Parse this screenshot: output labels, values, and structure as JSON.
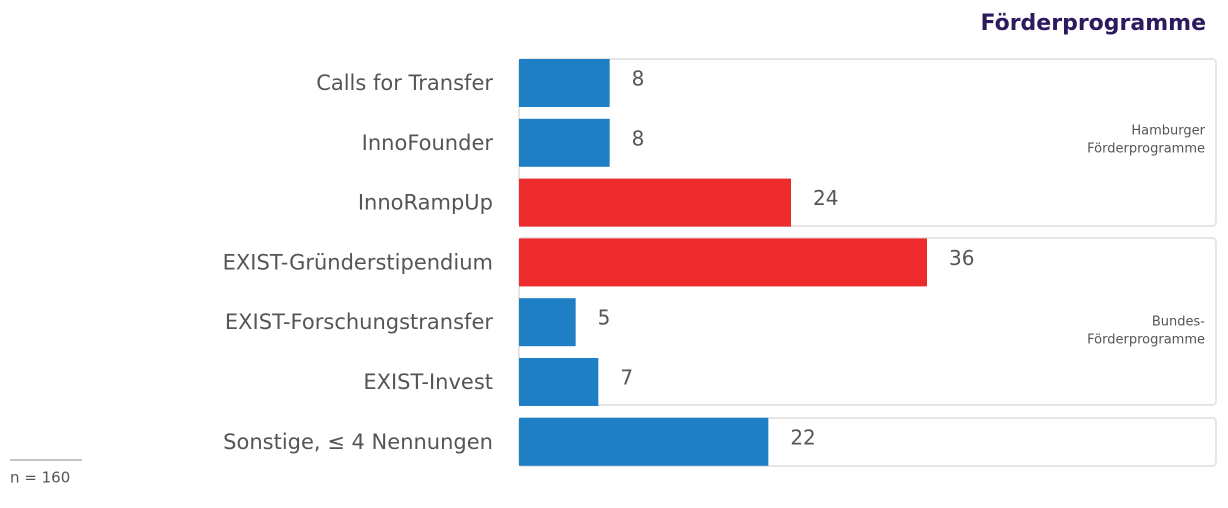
{
  "chart_data": {
    "type": "bar",
    "orientation": "horizontal",
    "title": "Förderprogramme",
    "categories": [
      "Calls for Transfer",
      "InnoFounder",
      "InnoRampUp",
      "EXIST-Gründerstipendium",
      "EXIST-Forschungstransfer",
      "EXIST-Invest",
      "Sonstige, ≤ 4 Nennungen"
    ],
    "values": [
      8,
      8,
      24,
      36,
      5,
      7,
      22
    ],
    "colors": [
      "#1f7fc4",
      "#1f7fc4",
      "#ee2b2c",
      "#ee2b2c",
      "#1f7fc4",
      "#1f7fc4",
      "#1f7fc4"
    ],
    "groups": [
      {
        "lines": [
          "Hamburger",
          "Förderprogramme"
        ]
      },
      {
        "lines": [
          "Bundes-",
          "Förderprogramme"
        ]
      }
    ],
    "note": "n = 160"
  }
}
